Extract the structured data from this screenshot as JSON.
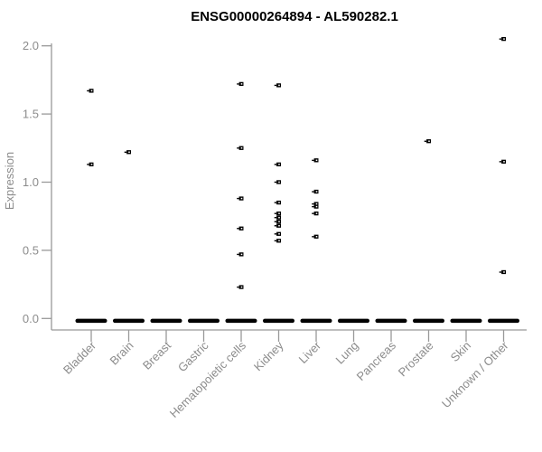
{
  "chart_data": {
    "type": "scatter",
    "title": "ENSG00000264894 - AL590282.1",
    "ylabel": "Expression",
    "xlabel": "",
    "ylim": [
      0.0,
      2.0
    ],
    "ytick_labels": [
      "0.0",
      "0.5",
      "1.0",
      "1.5",
      "2.0"
    ],
    "ytick_values": [
      0.0,
      0.5,
      1.0,
      1.5,
      2.0
    ],
    "grid": false,
    "legend": "none",
    "point_style": "tiny open black squares",
    "zero_cluster_note": "every category has a dense overlapping cluster of points at expression 0 drawn as a thick black dash",
    "groups": [
      {
        "label": "Bladder",
        "nonzero_values": [
          1.67,
          1.13
        ],
        "zero_cluster": true
      },
      {
        "label": "Brain",
        "nonzero_values": [
          1.22
        ],
        "zero_cluster": true
      },
      {
        "label": "Breast",
        "nonzero_values": [],
        "zero_cluster": true
      },
      {
        "label": "Gastric",
        "nonzero_values": [],
        "zero_cluster": true
      },
      {
        "label": "Hematopoietic cells",
        "nonzero_values": [
          1.72,
          1.25,
          0.88,
          0.66,
          0.47,
          0.23
        ],
        "zero_cluster": true
      },
      {
        "label": "Kidney",
        "nonzero_values": [
          1.71,
          1.13,
          1.0,
          0.85,
          0.77,
          0.74,
          0.71,
          0.68,
          0.62,
          0.57
        ],
        "zero_cluster": true
      },
      {
        "label": "Liver",
        "nonzero_values": [
          1.16,
          0.93,
          0.84,
          0.82,
          0.77,
          0.6
        ],
        "zero_cluster": true
      },
      {
        "label": "Lung",
        "nonzero_values": [],
        "zero_cluster": true
      },
      {
        "label": "Pancreas",
        "nonzero_values": [],
        "zero_cluster": true
      },
      {
        "label": "Prostate",
        "nonzero_values": [
          1.3
        ],
        "zero_cluster": true
      },
      {
        "label": "Skin",
        "nonzero_values": [],
        "zero_cluster": true
      },
      {
        "label": "Unknown / Other",
        "nonzero_values": [
          2.05,
          1.15,
          0.34
        ],
        "zero_cluster": true
      }
    ],
    "colors": {
      "points": "#000000",
      "axis": "#999999",
      "labels": "#8c8c8c",
      "title": "#000000",
      "background": "#ffffff"
    }
  }
}
